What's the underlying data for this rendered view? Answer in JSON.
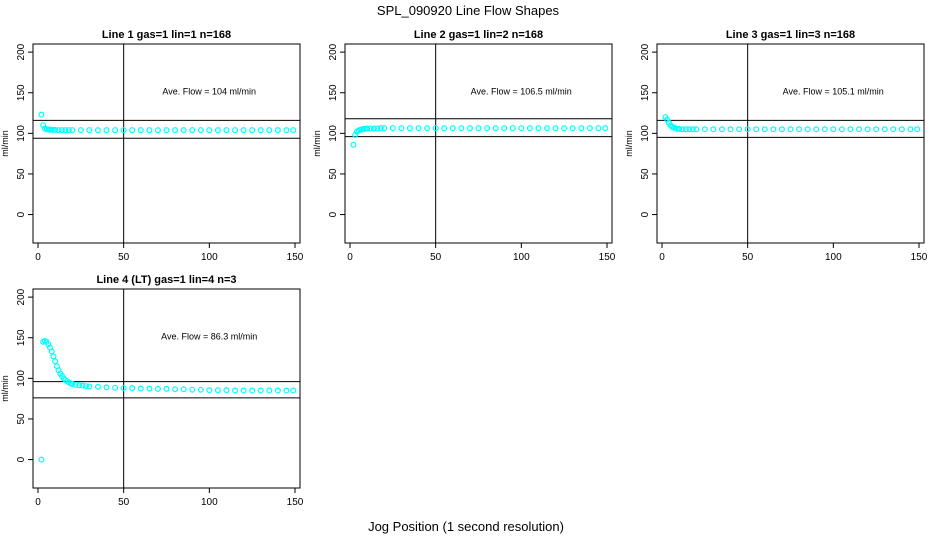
{
  "figure": {
    "title": "SPL_090920  Line Flow Shapes",
    "xlabel": "Jog Position (1 second resolution)"
  },
  "chart_data": [
    {
      "type": "scatter",
      "title": "Line 1 gas=1 lin=1 n=168",
      "ylabel": "ml/min",
      "xlim": [
        0,
        150
      ],
      "ylim": [
        -35,
        210
      ],
      "xticks": [
        0,
        50,
        100,
        150
      ],
      "yticks": [
        0,
        50,
        100,
        150,
        200
      ],
      "annotation": "Ave. Flow =  104  ml/min",
      "vline": 50,
      "hlines": [
        116,
        94
      ],
      "point_color": "#00ffff",
      "series": [
        {
          "x": [
            2,
            3,
            4,
            5,
            6,
            7,
            8,
            9,
            10,
            12,
            14,
            16,
            18,
            20,
            25,
            30,
            35,
            40,
            45,
            50,
            55,
            60,
            65,
            70,
            75,
            80,
            85,
            90,
            95,
            100,
            105,
            110,
            115,
            120,
            125,
            130,
            135,
            140,
            145,
            149
          ],
          "y": [
            123,
            110,
            106,
            105,
            105,
            104.5,
            104.5,
            104.2,
            104.2,
            104,
            104,
            104,
            104,
            104,
            104,
            104,
            104,
            104,
            104,
            104,
            104,
            104,
            104,
            104,
            104,
            104,
            104,
            104,
            104,
            104,
            104,
            104,
            104,
            104,
            104,
            104,
            104,
            104,
            104,
            104
          ]
        }
      ]
    },
    {
      "type": "scatter",
      "title": "Line 2 gas=1 lin=2 n=168",
      "ylabel": "ml/min",
      "xlim": [
        0,
        150
      ],
      "ylim": [
        -35,
        210
      ],
      "xticks": [
        0,
        50,
        100,
        150
      ],
      "yticks": [
        0,
        50,
        100,
        150,
        200
      ],
      "annotation": "Ave. Flow =  106.5  ml/min",
      "vline": 50,
      "hlines": [
        118,
        96
      ],
      "point_color": "#00ffff",
      "series": [
        {
          "x": [
            2,
            3,
            4,
            5,
            6,
            7,
            8,
            9,
            10,
            12,
            14,
            16,
            18,
            20,
            25,
            30,
            35,
            40,
            45,
            50,
            55,
            60,
            65,
            70,
            75,
            80,
            85,
            90,
            95,
            100,
            105,
            110,
            115,
            120,
            125,
            130,
            135,
            140,
            145,
            149
          ],
          "y": [
            86,
            98,
            102,
            103.5,
            104.5,
            105,
            105.5,
            105.5,
            106,
            106,
            106,
            106,
            106.5,
            106.5,
            106.5,
            106.5,
            106.5,
            106.5,
            106.5,
            106.5,
            106.5,
            106.5,
            106.5,
            106.5,
            106.5,
            106.5,
            106.5,
            106.5,
            106.5,
            106.5,
            106.5,
            106.5,
            106.5,
            106.5,
            106.5,
            106.5,
            106.5,
            106.5,
            106.5,
            106.5
          ]
        }
      ]
    },
    {
      "type": "scatter",
      "title": "Line 3 gas=1 lin=3 n=168",
      "ylabel": "ml/min",
      "xlim": [
        0,
        150
      ],
      "ylim": [
        -35,
        210
      ],
      "xticks": [
        0,
        50,
        100,
        150
      ],
      "yticks": [
        0,
        50,
        100,
        150,
        200
      ],
      "annotation": "Ave. Flow =  105.1  ml/min",
      "vline": 50,
      "hlines": [
        116,
        95
      ],
      "point_color": "#00ffff",
      "series": [
        {
          "x": [
            2,
            3,
            4,
            5,
            6,
            7,
            8,
            9,
            10,
            12,
            14,
            16,
            18,
            20,
            25,
            30,
            35,
            40,
            45,
            50,
            55,
            60,
            65,
            70,
            75,
            80,
            85,
            90,
            95,
            100,
            105,
            110,
            115,
            120,
            125,
            130,
            135,
            140,
            145,
            149
          ],
          "y": [
            120,
            117,
            113,
            110,
            108,
            107,
            106,
            105.5,
            105.5,
            105,
            105,
            105,
            105,
            105,
            105,
            105,
            105,
            105,
            105,
            105,
            105,
            105,
            105,
            105,
            105,
            105,
            105,
            105,
            105,
            105,
            105,
            105,
            105,
            105,
            105,
            105,
            105,
            105,
            105,
            105
          ]
        }
      ]
    },
    {
      "type": "scatter",
      "title": "Line 4 (LT) gas=1 lin=4 n=3",
      "ylabel": "ml/min",
      "xlim": [
        0,
        150
      ],
      "ylim": [
        -35,
        210
      ],
      "xticks": [
        0,
        50,
        100,
        150
      ],
      "yticks": [
        0,
        50,
        100,
        150,
        200
      ],
      "annotation": "Ave. Flow =  86.3  ml/min",
      "vline": 50,
      "hlines": [
        96,
        76
      ],
      "point_color": "#00ffff",
      "series": [
        {
          "x": [
            2,
            3,
            4,
            5,
            6,
            7,
            8,
            9,
            10,
            11,
            12,
            13,
            14,
            15,
            16,
            17,
            18,
            19,
            20,
            22,
            24,
            26,
            28,
            30,
            35,
            40,
            45,
            50,
            55,
            60,
            65,
            70,
            75,
            80,
            85,
            90,
            95,
            100,
            105,
            110,
            115,
            120,
            125,
            130,
            135,
            140,
            145,
            149
          ],
          "y": [
            0,
            145,
            146,
            145,
            142,
            138,
            133,
            127,
            121,
            115,
            110,
            106,
            103,
            100,
            98,
            96.5,
            95,
            94,
            93,
            92,
            91.5,
            91,
            90.5,
            90,
            89.5,
            89,
            88.5,
            88,
            88,
            87.5,
            87.5,
            87,
            87,
            86.5,
            86.5,
            86,
            86,
            85.5,
            85.5,
            85.5,
            85,
            85,
            85,
            85,
            85,
            85,
            85,
            85
          ]
        }
      ]
    }
  ]
}
